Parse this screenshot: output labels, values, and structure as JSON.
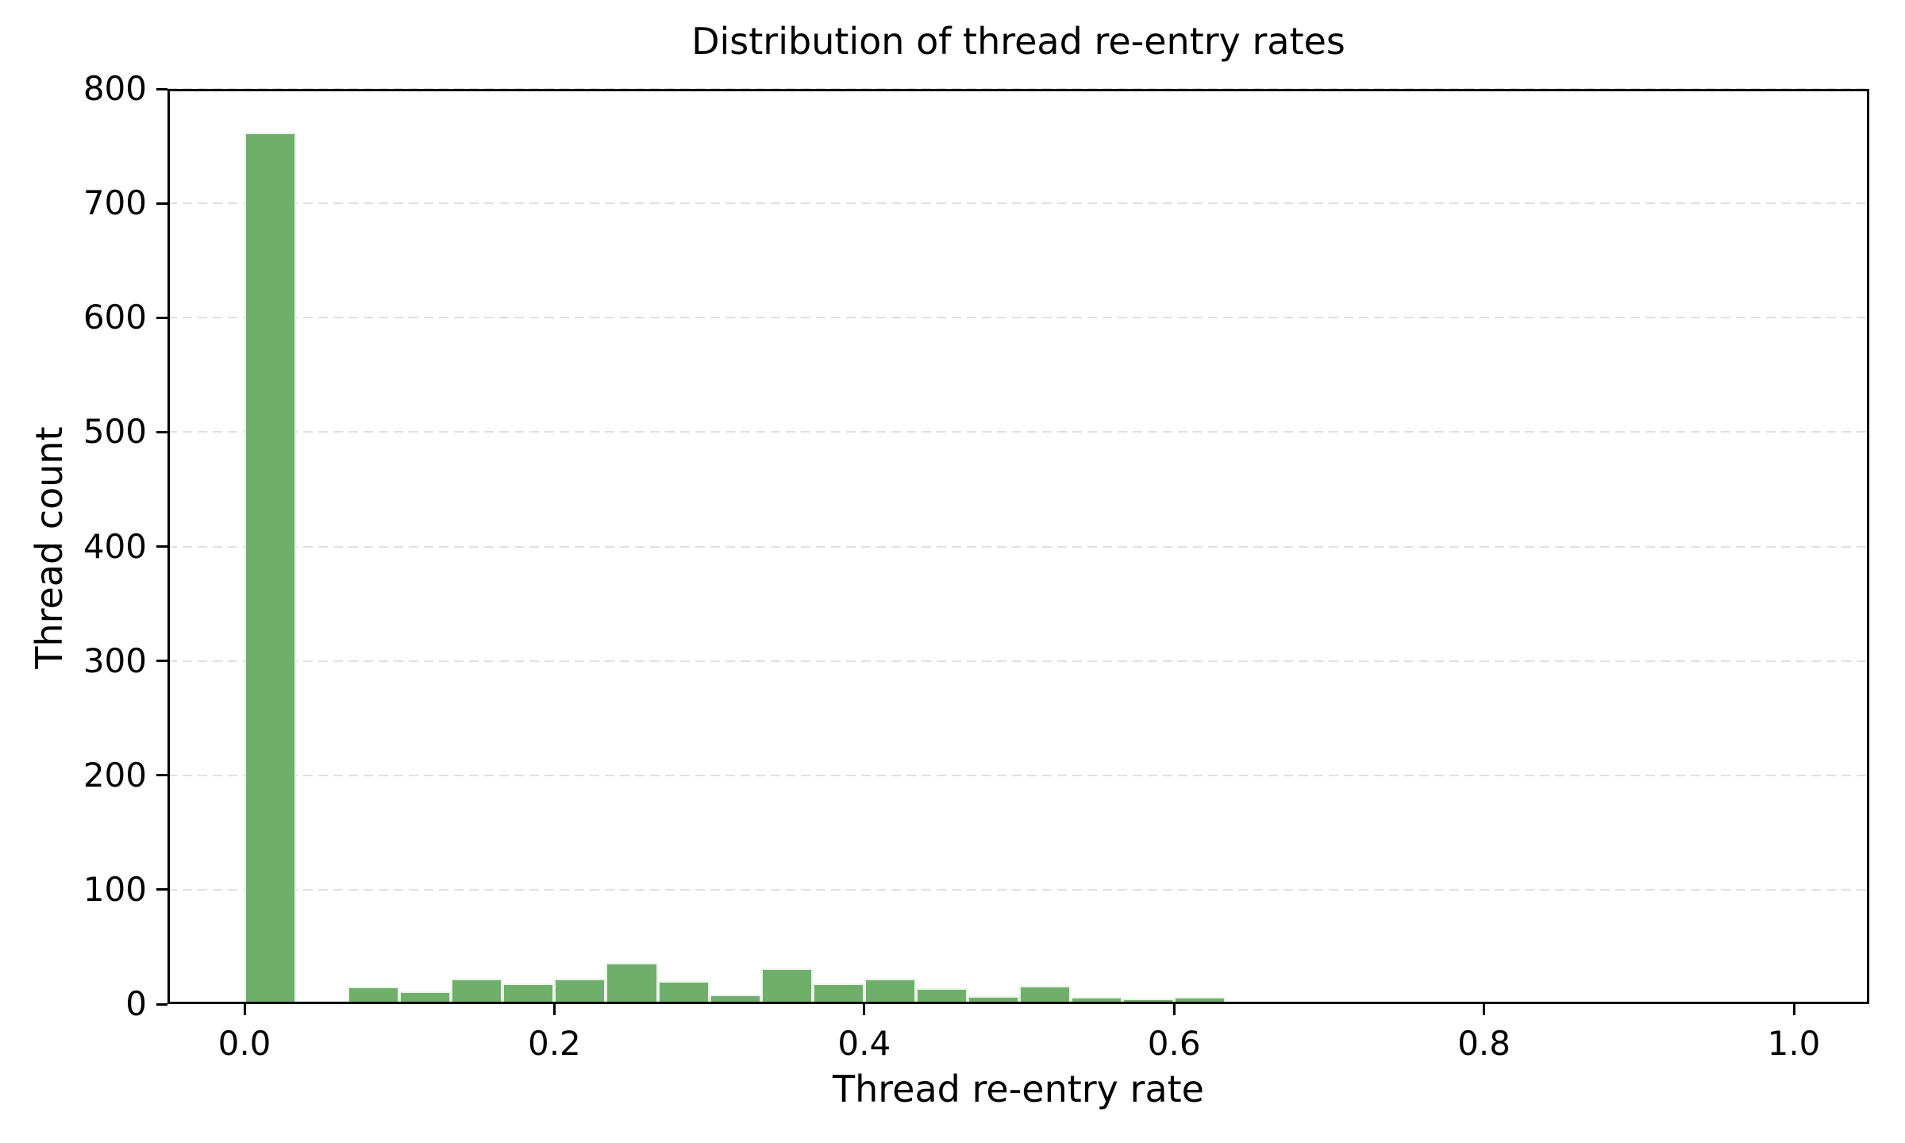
{
  "figure": {
    "background": "#ffffff"
  },
  "chart_data": {
    "type": "bar",
    "subtype": "histogram",
    "title": "Distribution of thread re-entry rates",
    "xlabel": "Thread re-entry rate",
    "ylabel": "Thread count",
    "bin_start": 0.0,
    "bin_width": 0.033333,
    "counts": [
      762,
      3,
      15,
      11,
      22,
      18,
      22,
      36,
      20,
      8,
      31,
      18,
      22,
      14,
      7,
      16,
      6,
      5,
      6,
      2,
      2,
      1,
      0,
      0,
      0,
      0,
      0,
      0,
      0,
      0
    ],
    "xticks": {
      "values": [
        0.0,
        0.2,
        0.4,
        0.6,
        0.8,
        1.0
      ],
      "labels": [
        "0.0",
        "0.2",
        "0.4",
        "0.6",
        "0.8",
        "1.0"
      ]
    },
    "yticks": {
      "values": [
        0,
        100,
        200,
        300,
        400,
        500,
        600,
        700,
        800
      ],
      "labels": [
        "0",
        "100",
        "200",
        "300",
        "400",
        "500",
        "600",
        "700",
        "800"
      ]
    },
    "xlim": [
      -0.05,
      1.05
    ],
    "ylim": [
      0,
      800
    ],
    "grid": "horizontal-dashed",
    "legend": "none",
    "colors": {
      "bar_fill": "#6eb069",
      "bar_edge": "#e9f3e8",
      "grid": "#e0e0e0",
      "spine": "#000000",
      "text": "#000000"
    }
  }
}
